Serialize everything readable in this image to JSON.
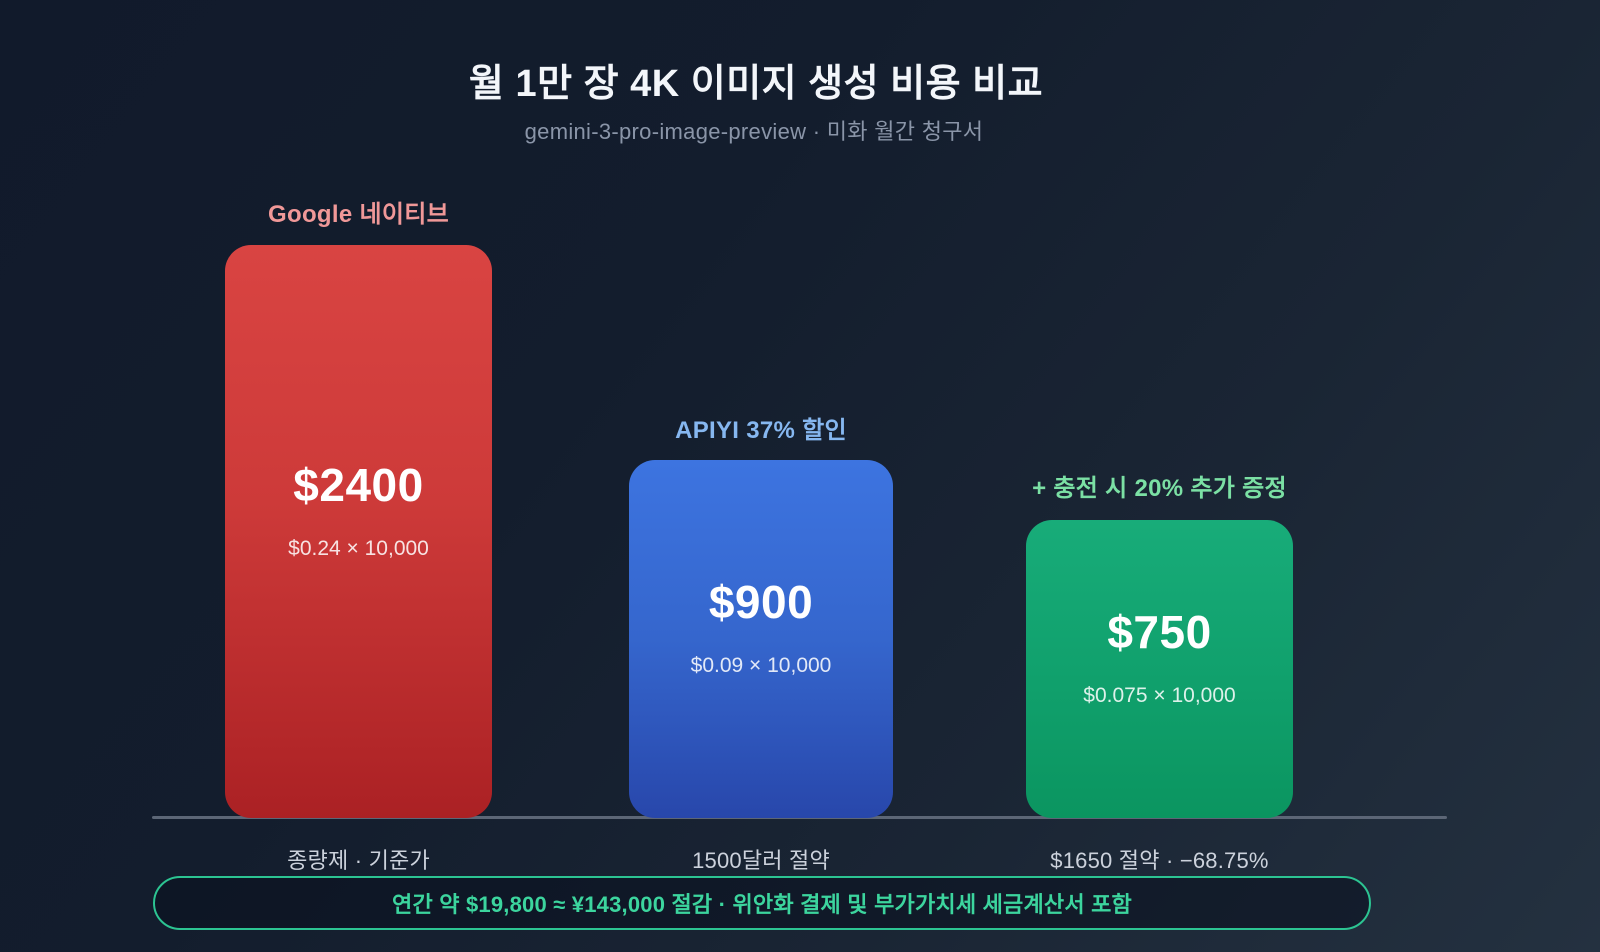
{
  "header": {
    "title": "월 1만 장 4K 이미지 생성 비용 비교",
    "subtitle": "gemini-3-pro-image-preview · 미화 월간 청구서"
  },
  "chart_data": {
    "type": "bar",
    "title": "월 1만 장 4K 이미지 생성 비용 비교",
    "subtitle": "gemini-3-pro-image-preview · 미화 월간 청구서",
    "unit": "USD per month (10,000 images)",
    "categories": [
      "Google 네이티브",
      "APIYI 37% 할인",
      "+ 충전 시 20% 추가 증정"
    ],
    "values": [
      2400,
      900,
      750
    ],
    "ylim": [
      0,
      2400
    ],
    "grid": false,
    "legend_position": "none",
    "axis_line_color": "#5c6676",
    "background_top": "#111a2b",
    "background_bottom": "#243140",
    "bars": [
      {
        "label": "Google 네이티브",
        "label_color": "#f09898",
        "value": 2400,
        "value_label": "$2400",
        "formula": "$0.24 × 10,000",
        "footnote": "종량제 · 기준가",
        "color_top": "#d94442",
        "color_bottom": "#ab2124"
      },
      {
        "label": "APIYI 37% 할인",
        "label_color": "#86b7f0",
        "value": 900,
        "value_label": "$900",
        "formula": "$0.09 × 10,000",
        "footnote": "1500달러 절약",
        "color_top": "#3d74e0",
        "color_bottom": "#2847ab"
      },
      {
        "label": "+ 충전 시 20% 추가 증정",
        "label_color": "#7be0a4",
        "value": 750,
        "value_label": "$750",
        "formula": "$0.075 × 10,000",
        "footnote": "$1650 절약 · −68.75%",
        "color_top": "#18ac79",
        "color_bottom": "#0b9560"
      }
    ]
  },
  "summary_banner": {
    "text": "연간 약 $19,800 ≈ ¥143,000 절감 · 위안화 결제 및 부가가치세 세금계산서 포함",
    "border_color": "#2cc492",
    "text_color": "#3cd59e"
  }
}
